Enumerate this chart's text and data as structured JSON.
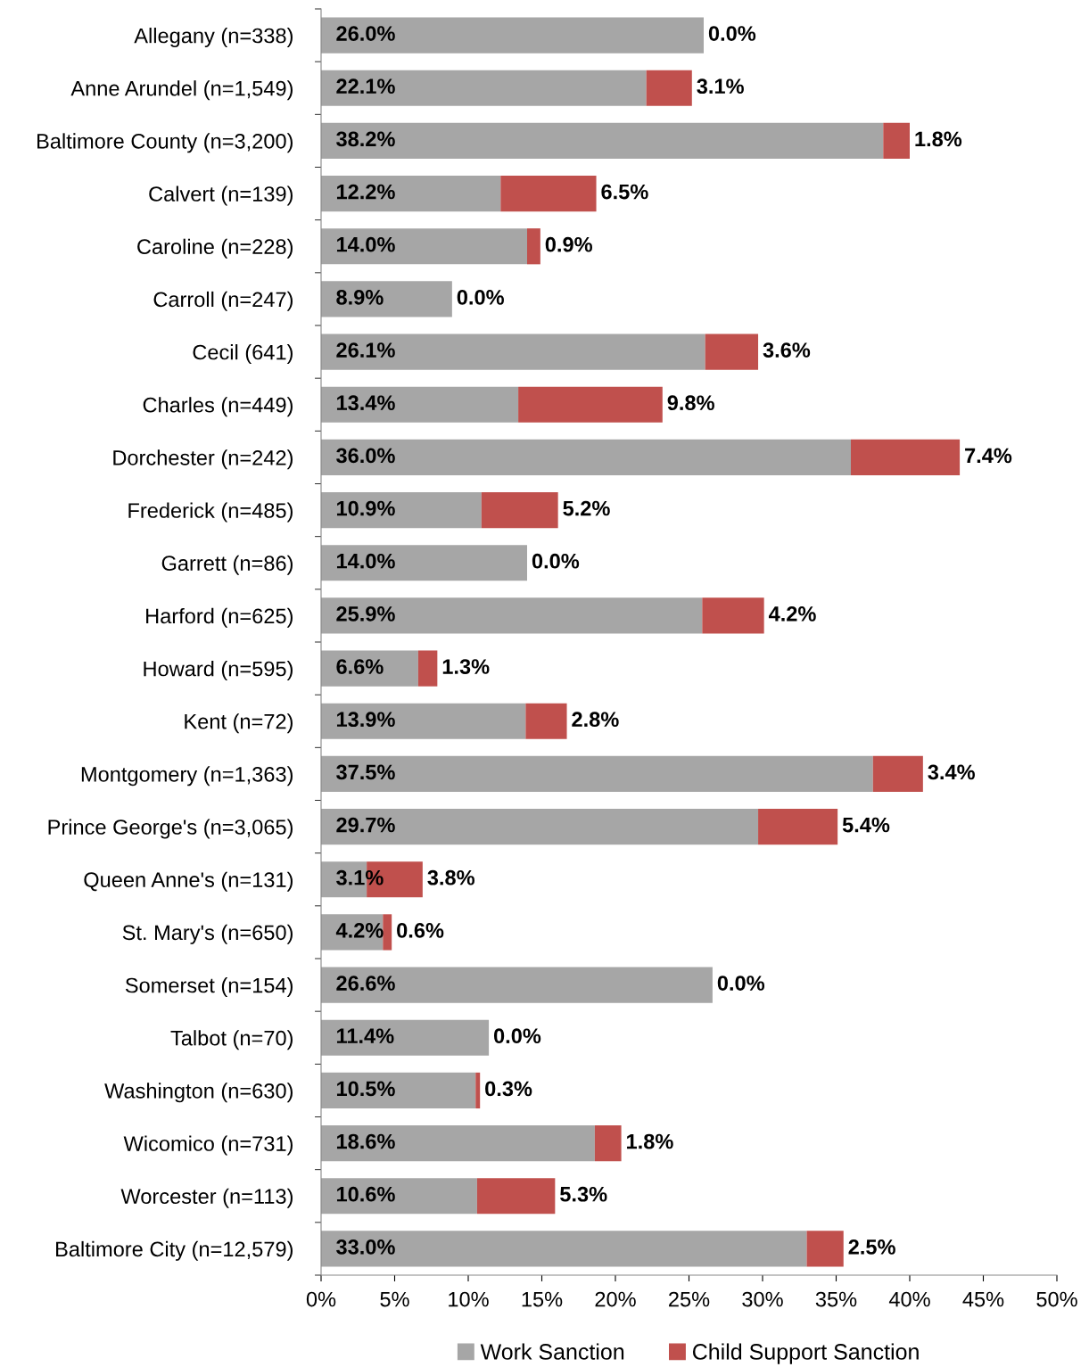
{
  "chart_data": {
    "type": "bar",
    "orientation": "horizontal",
    "stacked": true,
    "categories": [
      "Allegany (n=338)",
      "Anne Arundel (n=1,549)",
      "Baltimore County (n=3,200)",
      "Calvert (n=139)",
      "Caroline (n=228)",
      "Carroll (n=247)",
      "Cecil (641)",
      "Charles (n=449)",
      "Dorchester (n=242)",
      "Frederick (n=485)",
      "Garrett (n=86)",
      "Harford (n=625)",
      "Howard (n=595)",
      "Kent (n=72)",
      "Montgomery (n=1,363)",
      "Prince George's (n=3,065)",
      "Queen Anne's (n=131)",
      "St. Mary's (n=650)",
      "Somerset (n=154)",
      "Talbot (n=70)",
      "Washington (n=630)",
      "Wicomico (n=731)",
      "Worcester (n=113)",
      "Baltimore City (n=12,579)"
    ],
    "series": [
      {
        "name": "Work Sanction",
        "color": "#a6a6a6",
        "values": [
          26.0,
          22.1,
          38.2,
          12.2,
          14.0,
          8.9,
          26.1,
          13.4,
          36.0,
          10.9,
          14.0,
          25.9,
          6.6,
          13.9,
          37.5,
          29.7,
          3.1,
          4.2,
          26.6,
          11.4,
          10.5,
          18.6,
          10.6,
          33.0
        ],
        "value_labels": [
          "26.0%",
          "22.1%",
          "38.2%",
          "12.2%",
          "14.0%",
          "8.9%",
          "26.1%",
          "13.4%",
          "36.0%",
          "10.9%",
          "14.0%",
          "25.9%",
          "6.6%",
          "13.9%",
          "37.5%",
          "29.7%",
          "3.1%",
          "4.2%",
          "26.6%",
          "11.4%",
          "10.5%",
          "18.6%",
          "10.6%",
          "33.0%"
        ]
      },
      {
        "name": "Child Support Sanction",
        "color": "#c0504d",
        "values": [
          0.0,
          3.1,
          1.8,
          6.5,
          0.9,
          0.0,
          3.6,
          9.8,
          7.4,
          5.2,
          0.0,
          4.2,
          1.3,
          2.8,
          3.4,
          5.4,
          3.8,
          0.6,
          0.0,
          0.0,
          0.3,
          1.8,
          5.3,
          2.5
        ],
        "value_labels": [
          "0.0%",
          "3.1%",
          "1.8%",
          "6.5%",
          "0.9%",
          "0.0%",
          "3.6%",
          "9.8%",
          "7.4%",
          "5.2%",
          "0.0%",
          "4.2%",
          "1.3%",
          "2.8%",
          "3.4%",
          "5.4%",
          "3.8%",
          "0.6%",
          "0.0%",
          "0.0%",
          "0.3%",
          "1.8%",
          "5.3%",
          "2.5%"
        ]
      }
    ],
    "xlim": [
      0,
      50
    ],
    "xticks": [
      {
        "value": 0,
        "label": "0%"
      },
      {
        "value": 5,
        "label": "5%"
      },
      {
        "value": 10,
        "label": "10%"
      },
      {
        "value": 15,
        "label": "15%"
      },
      {
        "value": 20,
        "label": "20%"
      },
      {
        "value": 25,
        "label": "25%"
      },
      {
        "value": 30,
        "label": "30%"
      },
      {
        "value": 35,
        "label": "35%"
      },
      {
        "value": 40,
        "label": "40%"
      },
      {
        "value": 45,
        "label": "45%"
      },
      {
        "value": 50,
        "label": "50%"
      }
    ],
    "grid": false,
    "legend": "bottom"
  }
}
